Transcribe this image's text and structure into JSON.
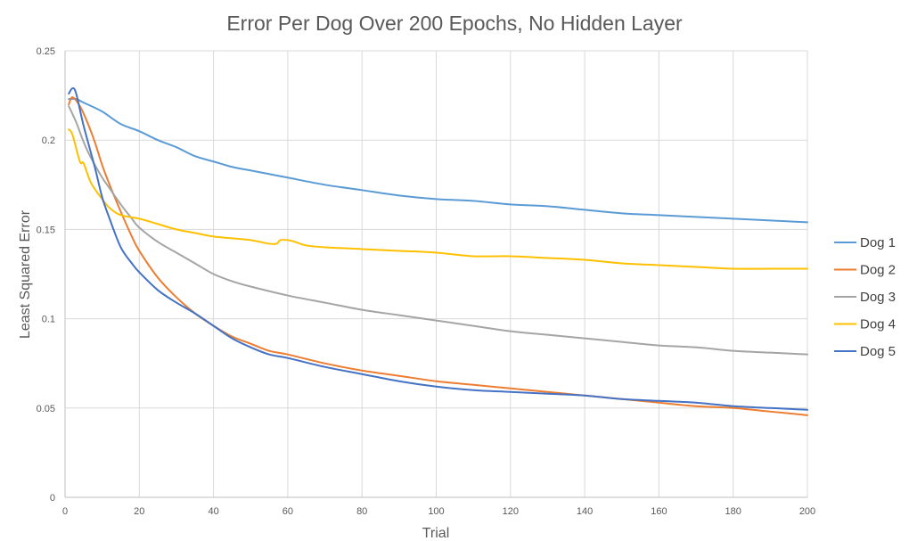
{
  "chart_data": {
    "type": "line",
    "title": "Error Per Dog Over 200 Epochs, No Hidden Layer",
    "xlabel": "Trial",
    "ylabel": "Least Squared Error",
    "xlim": [
      0,
      200
    ],
    "ylim": [
      0,
      0.25
    ],
    "xticks": [
      0,
      20,
      40,
      60,
      80,
      100,
      120,
      140,
      160,
      180,
      200
    ],
    "yticks": [
      0,
      0.05,
      0.1,
      0.15,
      0.2,
      0.25
    ],
    "ytick_labels": [
      "0",
      "0.05",
      "0.1",
      "0.15",
      "0.2",
      "0.25"
    ],
    "grid": true,
    "legend_position": "right",
    "series": [
      {
        "name": "Dog 1",
        "color": "#5B9BD5",
        "points": [
          [
            1,
            0.223
          ],
          [
            3,
            0.223
          ],
          [
            5,
            0.221
          ],
          [
            10,
            0.216
          ],
          [
            15,
            0.209
          ],
          [
            20,
            0.205
          ],
          [
            25,
            0.2
          ],
          [
            30,
            0.196
          ],
          [
            35,
            0.191
          ],
          [
            40,
            0.188
          ],
          [
            45,
            0.185
          ],
          [
            50,
            0.183
          ],
          [
            55,
            0.181
          ],
          [
            60,
            0.179
          ],
          [
            70,
            0.175
          ],
          [
            80,
            0.172
          ],
          [
            90,
            0.169
          ],
          [
            100,
            0.167
          ],
          [
            110,
            0.166
          ],
          [
            120,
            0.164
          ],
          [
            130,
            0.163
          ],
          [
            140,
            0.161
          ],
          [
            150,
            0.159
          ],
          [
            160,
            0.158
          ],
          [
            170,
            0.157
          ],
          [
            180,
            0.156
          ],
          [
            190,
            0.155
          ],
          [
            200,
            0.154
          ]
        ]
      },
      {
        "name": "Dog 2",
        "color": "#ED7D31",
        "points": [
          [
            1,
            0.22
          ],
          [
            2,
            0.224
          ],
          [
            4,
            0.219
          ],
          [
            6,
            0.21
          ],
          [
            8,
            0.199
          ],
          [
            10,
            0.186
          ],
          [
            12,
            0.175
          ],
          [
            15,
            0.16
          ],
          [
            18,
            0.146
          ],
          [
            20,
            0.138
          ],
          [
            25,
            0.123
          ],
          [
            30,
            0.112
          ],
          [
            35,
            0.103
          ],
          [
            40,
            0.096
          ],
          [
            45,
            0.09
          ],
          [
            50,
            0.086
          ],
          [
            55,
            0.082
          ],
          [
            60,
            0.08
          ],
          [
            70,
            0.075
          ],
          [
            80,
            0.071
          ],
          [
            90,
            0.068
          ],
          [
            100,
            0.065
          ],
          [
            110,
            0.063
          ],
          [
            120,
            0.061
          ],
          [
            130,
            0.059
          ],
          [
            140,
            0.057
          ],
          [
            150,
            0.055
          ],
          [
            160,
            0.053
          ],
          [
            170,
            0.051
          ],
          [
            180,
            0.05
          ],
          [
            190,
            0.048
          ],
          [
            200,
            0.046
          ]
        ]
      },
      {
        "name": "Dog 3",
        "color": "#A5A5A5",
        "points": [
          [
            1,
            0.219
          ],
          [
            3,
            0.21
          ],
          [
            5,
            0.199
          ],
          [
            7,
            0.19
          ],
          [
            10,
            0.179
          ],
          [
            12,
            0.173
          ],
          [
            15,
            0.164
          ],
          [
            18,
            0.156
          ],
          [
            20,
            0.151
          ],
          [
            25,
            0.143
          ],
          [
            30,
            0.137
          ],
          [
            35,
            0.131
          ],
          [
            40,
            0.125
          ],
          [
            45,
            0.121
          ],
          [
            50,
            0.118
          ],
          [
            60,
            0.113
          ],
          [
            70,
            0.109
          ],
          [
            80,
            0.105
          ],
          [
            90,
            0.102
          ],
          [
            100,
            0.099
          ],
          [
            110,
            0.096
          ],
          [
            120,
            0.093
          ],
          [
            130,
            0.091
          ],
          [
            140,
            0.089
          ],
          [
            150,
            0.087
          ],
          [
            160,
            0.085
          ],
          [
            170,
            0.084
          ],
          [
            180,
            0.082
          ],
          [
            190,
            0.081
          ],
          [
            200,
            0.08
          ]
        ]
      },
      {
        "name": "Dog 4",
        "color": "#FFC000",
        "points": [
          [
            1,
            0.206
          ],
          [
            2,
            0.203
          ],
          [
            4,
            0.188
          ],
          [
            5,
            0.187
          ],
          [
            7,
            0.176
          ],
          [
            10,
            0.167
          ],
          [
            12,
            0.162
          ],
          [
            15,
            0.158
          ],
          [
            20,
            0.156
          ],
          [
            25,
            0.153
          ],
          [
            30,
            0.15
          ],
          [
            35,
            0.148
          ],
          [
            40,
            0.146
          ],
          [
            45,
            0.145
          ],
          [
            50,
            0.144
          ],
          [
            55,
            0.142
          ],
          [
            57,
            0.142
          ],
          [
            58,
            0.144
          ],
          [
            60,
            0.144
          ],
          [
            62,
            0.143
          ],
          [
            65,
            0.141
          ],
          [
            70,
            0.14
          ],
          [
            80,
            0.139
          ],
          [
            90,
            0.138
          ],
          [
            100,
            0.137
          ],
          [
            110,
            0.135
          ],
          [
            120,
            0.135
          ],
          [
            130,
            0.134
          ],
          [
            140,
            0.133
          ],
          [
            150,
            0.131
          ],
          [
            160,
            0.13
          ],
          [
            170,
            0.129
          ],
          [
            180,
            0.128
          ],
          [
            190,
            0.128
          ],
          [
            200,
            0.128
          ]
        ]
      },
      {
        "name": "Dog 5",
        "color": "#4472C4",
        "points": [
          [
            1,
            0.226
          ],
          [
            2,
            0.229
          ],
          [
            3,
            0.226
          ],
          [
            5,
            0.208
          ],
          [
            8,
            0.185
          ],
          [
            10,
            0.168
          ],
          [
            12,
            0.156
          ],
          [
            15,
            0.14
          ],
          [
            18,
            0.131
          ],
          [
            20,
            0.126
          ],
          [
            25,
            0.116
          ],
          [
            30,
            0.109
          ],
          [
            35,
            0.103
          ],
          [
            40,
            0.096
          ],
          [
            45,
            0.089
          ],
          [
            50,
            0.084
          ],
          [
            55,
            0.08
          ],
          [
            60,
            0.078
          ],
          [
            70,
            0.073
          ],
          [
            80,
            0.069
          ],
          [
            90,
            0.065
          ],
          [
            100,
            0.062
          ],
          [
            110,
            0.06
          ],
          [
            120,
            0.059
          ],
          [
            130,
            0.058
          ],
          [
            140,
            0.057
          ],
          [
            150,
            0.055
          ],
          [
            160,
            0.054
          ],
          [
            170,
            0.053
          ],
          [
            180,
            0.051
          ],
          [
            190,
            0.05
          ],
          [
            200,
            0.049
          ]
        ]
      }
    ]
  }
}
